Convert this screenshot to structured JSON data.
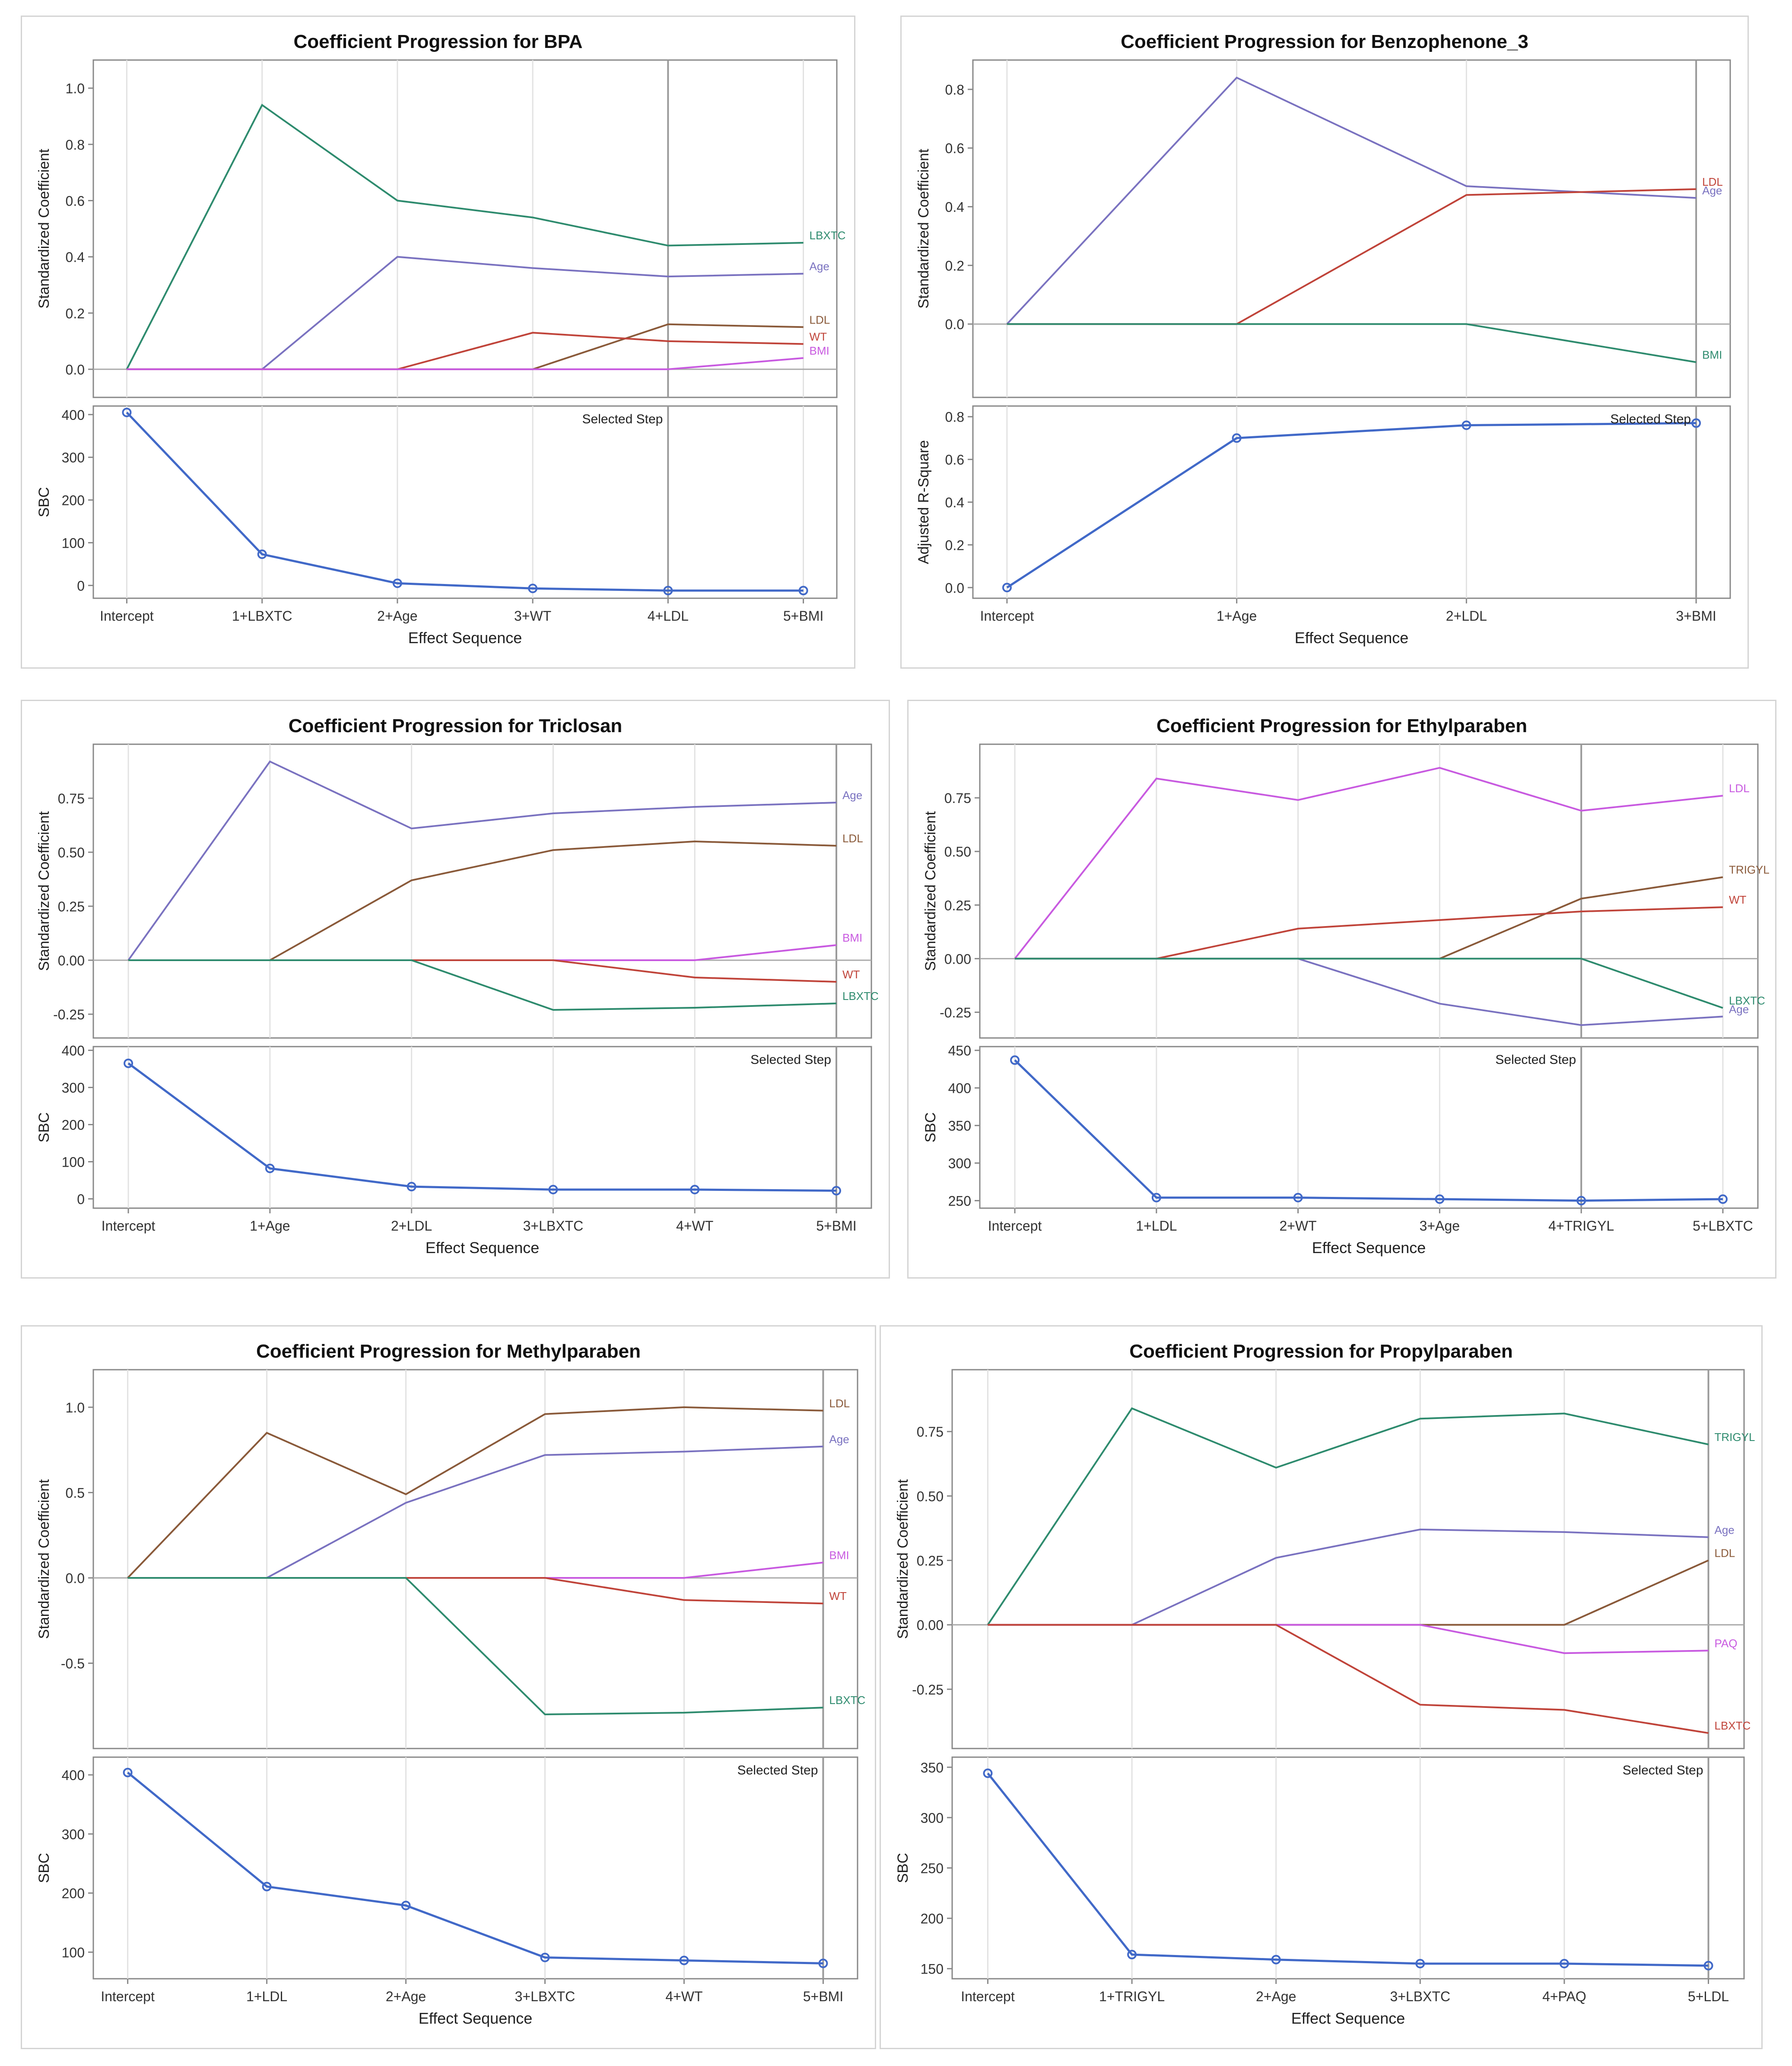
{
  "colors": {
    "LBXTC": "#2e8b6e",
    "Age": "#7a72c0",
    "LDL": "#b35a3a",
    "LDL_brown": "#8a5a3a",
    "WT": "#c0443a",
    "BMI": "#c85ae0",
    "TRIGYL": "#2e8b6e",
    "TRIGYL_brown": "#8a5a3a",
    "PAQ": "#c85ae0",
    "LBXTC_red": "#c0443a",
    "crit": "#4169c8",
    "axis": "#888888",
    "grid": "#e2e2e2"
  },
  "chart_data": [
    {
      "type": "line",
      "title": "Coefficient Progression for BPA",
      "xlabel": "Effect Sequence",
      "categories": [
        "Intercept",
        "1+LBXTC",
        "2+Age",
        "3+WT",
        "4+LDL",
        "5+BMI"
      ],
      "top": {
        "ylabel": "Standardized Coefficient",
        "ylim": [
          -0.1,
          1.1
        ],
        "yticks": [
          0.0,
          0.2,
          0.4,
          0.6,
          0.8,
          1.0
        ],
        "tick_labels": [
          "0.0",
          "0.2",
          "0.4",
          "0.6",
          "0.8",
          "1.0"
        ],
        "series": [
          {
            "name": "LBXTC",
            "color": "#2e8b6e",
            "values": [
              0,
              0.94,
              0.6,
              0.54,
              0.44,
              0.45
            ]
          },
          {
            "name": "Age",
            "color": "#7a72c0",
            "values": [
              0,
              0,
              0.4,
              0.36,
              0.33,
              0.34
            ]
          },
          {
            "name": "LDL",
            "color": "#8a5a3a",
            "values": [
              0,
              0,
              0,
              0,
              0.16,
              0.15
            ]
          },
          {
            "name": "WT",
            "color": "#c0443a",
            "values": [
              0,
              0,
              0,
              0.13,
              0.1,
              0.09
            ]
          },
          {
            "name": "BMI",
            "color": "#c85ae0",
            "values": [
              0,
              0,
              0,
              0,
              0,
              0.04
            ]
          }
        ]
      },
      "bottom": {
        "ylabel": "SBC",
        "ylim": [
          -30,
          420
        ],
        "yticks": [
          0,
          100,
          200,
          300,
          400
        ],
        "tick_labels": [
          "0",
          "100",
          "200",
          "300",
          "400"
        ],
        "values": [
          405,
          73,
          5,
          -7,
          -12,
          -12
        ]
      },
      "selected_step_index": 4,
      "selected_step_label": "Selected Step"
    },
    {
      "type": "line",
      "title": "Coefficient Progression for Benzophenone_3",
      "xlabel": "Effect Sequence",
      "categories": [
        "Intercept",
        "1+Age",
        "2+LDL",
        "3+BMI"
      ],
      "top": {
        "ylabel": "Standardized Coefficient",
        "ylim": [
          -0.25,
          0.9
        ],
        "yticks": [
          0.0,
          0.2,
          0.4,
          0.6,
          0.8
        ],
        "tick_labels": [
          "0.0",
          "0.2",
          "0.4",
          "0.6",
          "0.8"
        ],
        "series": [
          {
            "name": "Age",
            "color": "#7a72c0",
            "values": [
              0,
              0.84,
              0.47,
              0.43
            ]
          },
          {
            "name": "LDL",
            "color": "#c0443a",
            "values": [
              0,
              0,
              0.44,
              0.46
            ]
          },
          {
            "name": "BMI",
            "color": "#2e8b6e",
            "values": [
              0,
              0,
              0,
              -0.13
            ]
          }
        ]
      },
      "bottom": {
        "ylabel": "Adjusted R-Square",
        "ylim": [
          -0.05,
          0.85
        ],
        "yticks": [
          0.0,
          0.2,
          0.4,
          0.6,
          0.8
        ],
        "tick_labels": [
          "0.0",
          "0.2",
          "0.4",
          "0.6",
          "0.8"
        ],
        "values": [
          0,
          0.7,
          0.76,
          0.77
        ]
      },
      "selected_step_index": 3,
      "selected_step_label": "Selected Step"
    },
    {
      "type": "line",
      "title": "Coefficient Progression for Triclosan",
      "xlabel": "Effect Sequence",
      "categories": [
        "Intercept",
        "1+Age",
        "2+LDL",
        "3+LBXTC",
        "4+WT",
        "5+BMI"
      ],
      "top": {
        "ylabel": "Standardized Coefficient",
        "ylim": [
          -0.36,
          1.0
        ],
        "yticks": [
          -0.25,
          0.0,
          0.25,
          0.5,
          0.75
        ],
        "tick_labels": [
          "-0.25",
          "0.00",
          "0.25",
          "0.50",
          "0.75"
        ],
        "series": [
          {
            "name": "Age",
            "color": "#7a72c0",
            "values": [
              0,
              0.92,
              0.61,
              0.68,
              0.71,
              0.73
            ]
          },
          {
            "name": "LDL",
            "color": "#8a5a3a",
            "values": [
              0,
              0,
              0.37,
              0.51,
              0.55,
              0.53
            ]
          },
          {
            "name": "BMI",
            "color": "#c85ae0",
            "values": [
              0,
              0,
              0,
              0,
              0,
              0.07
            ]
          },
          {
            "name": "WT",
            "color": "#c0443a",
            "values": [
              0,
              0,
              0,
              0,
              -0.08,
              -0.1
            ]
          },
          {
            "name": "LBXTC",
            "color": "#2e8b6e",
            "values": [
              0,
              0,
              0,
              -0.23,
              -0.22,
              -0.2
            ]
          }
        ]
      },
      "bottom": {
        "ylabel": "SBC",
        "ylim": [
          -25,
          410
        ],
        "yticks": [
          0,
          100,
          200,
          300,
          400
        ],
        "tick_labels": [
          "0",
          "100",
          "200",
          "300",
          "400"
        ],
        "values": [
          365,
          82,
          33,
          25,
          25,
          22
        ]
      },
      "selected_step_index": 5,
      "selected_step_label": "Selected Step"
    },
    {
      "type": "line",
      "title": "Coefficient Progression for Ethylparaben",
      "xlabel": "Effect Sequence",
      "categories": [
        "Intercept",
        "1+LDL",
        "2+WT",
        "3+Age",
        "4+TRIGYL",
        "5+LBXTC"
      ],
      "top": {
        "ylabel": "Standardized Coefficient",
        "ylim": [
          -0.37,
          1.0
        ],
        "yticks": [
          -0.25,
          0.0,
          0.25,
          0.5,
          0.75
        ],
        "tick_labels": [
          "-0.25",
          "0.00",
          "0.25",
          "0.50",
          "0.75"
        ],
        "series": [
          {
            "name": "LDL",
            "color": "#c85ae0",
            "values": [
              0,
              0.84,
              0.74,
              0.89,
              0.69,
              0.76
            ]
          },
          {
            "name": "TRIGYL",
            "color": "#8a5a3a",
            "values": [
              0,
              0,
              0,
              0,
              0.28,
              0.38
            ]
          },
          {
            "name": "WT",
            "color": "#c0443a",
            "values": [
              0,
              0,
              0.14,
              0.18,
              0.22,
              0.24
            ]
          },
          {
            "name": "Age",
            "color": "#7a72c0",
            "values": [
              0,
              0,
              0,
              -0.21,
              -0.31,
              -0.27
            ]
          },
          {
            "name": "LBXTC",
            "color": "#2e8b6e",
            "values": [
              0,
              0,
              0,
              0,
              0,
              -0.23
            ]
          }
        ]
      },
      "bottom": {
        "ylabel": "SBC",
        "ylim": [
          240,
          455
        ],
        "yticks": [
          250,
          300,
          350,
          400,
          450
        ],
        "tick_labels": [
          "250",
          "300",
          "350",
          "400",
          "450"
        ],
        "values": [
          437,
          254,
          254,
          252,
          250,
          252
        ]
      },
      "selected_step_index": 4,
      "selected_step_label": "Selected Step"
    },
    {
      "type": "line",
      "title": "Coefficient Progression for Methylparaben",
      "xlabel": "Effect Sequence",
      "categories": [
        "Intercept",
        "1+LDL",
        "2+Age",
        "3+LBXTC",
        "4+WT",
        "5+BMI"
      ],
      "top": {
        "ylabel": "Standardized Coefficient",
        "ylim": [
          -1.0,
          1.22
        ],
        "yticks": [
          -0.5,
          0.0,
          0.5,
          1.0
        ],
        "tick_labels": [
          "-0.5",
          "0.0",
          "0.5",
          "1.0"
        ],
        "series": [
          {
            "name": "LDL",
            "color": "#8a5a3a",
            "values": [
              0,
              0.85,
              0.49,
              0.96,
              1.0,
              0.98
            ]
          },
          {
            "name": "Age",
            "color": "#7a72c0",
            "values": [
              0,
              0,
              0.44,
              0.72,
              0.74,
              0.77
            ]
          },
          {
            "name": "BMI",
            "color": "#c85ae0",
            "values": [
              0,
              0,
              0,
              0,
              0,
              0.09
            ]
          },
          {
            "name": "WT",
            "color": "#c0443a",
            "values": [
              0,
              0,
              0,
              0,
              -0.13,
              -0.15
            ]
          },
          {
            "name": "LBXTC",
            "color": "#2e8b6e",
            "values": [
              0,
              0,
              0,
              -0.8,
              -0.79,
              -0.76
            ]
          }
        ]
      },
      "bottom": {
        "ylabel": "SBC",
        "ylim": [
          55,
          430
        ],
        "yticks": [
          100,
          200,
          300,
          400
        ],
        "tick_labels": [
          "100",
          "200",
          "300",
          "400"
        ],
        "values": [
          404,
          211,
          179,
          91,
          86,
          81
        ]
      },
      "selected_step_index": 5,
      "selected_step_label": "Selected Step"
    },
    {
      "type": "line",
      "title": "Coefficient Progression for Propylparaben",
      "xlabel": "Effect Sequence",
      "categories": [
        "Intercept",
        "1+TRIGYL",
        "2+Age",
        "3+LBXTC",
        "4+PAQ",
        "5+LDL"
      ],
      "top": {
        "ylabel": "Standardized Coefficient",
        "ylim": [
          -0.48,
          0.99
        ],
        "yticks": [
          -0.25,
          0.0,
          0.25,
          0.5,
          0.75
        ],
        "tick_labels": [
          "-0.25",
          "0.00",
          "0.25",
          "0.50",
          "0.75"
        ],
        "series": [
          {
            "name": "TRIGYL",
            "color": "#2e8b6e",
            "values": [
              0,
              0.84,
              0.61,
              0.8,
              0.82,
              0.7
            ]
          },
          {
            "name": "Age",
            "color": "#7a72c0",
            "values": [
              0,
              0,
              0.26,
              0.37,
              0.36,
              0.34
            ]
          },
          {
            "name": "LDL",
            "color": "#8a5a3a",
            "values": [
              0,
              0,
              0,
              0,
              0,
              0.25
            ]
          },
          {
            "name": "PAQ",
            "color": "#c85ae0",
            "values": [
              0,
              0,
              0,
              0,
              -0.11,
              -0.1
            ]
          },
          {
            "name": "LBXTC",
            "color": "#c0443a",
            "values": [
              0,
              0,
              0,
              -0.31,
              -0.33,
              -0.42
            ]
          }
        ]
      },
      "bottom": {
        "ylabel": "SBC",
        "ylim": [
          140,
          360
        ],
        "yticks": [
          150,
          200,
          250,
          300,
          350
        ],
        "tick_labels": [
          "150",
          "200",
          "250",
          "300",
          "350"
        ],
        "values": [
          344,
          164,
          159,
          155,
          155,
          153
        ]
      },
      "selected_step_index": 5,
      "selected_step_label": "Selected Step"
    }
  ]
}
